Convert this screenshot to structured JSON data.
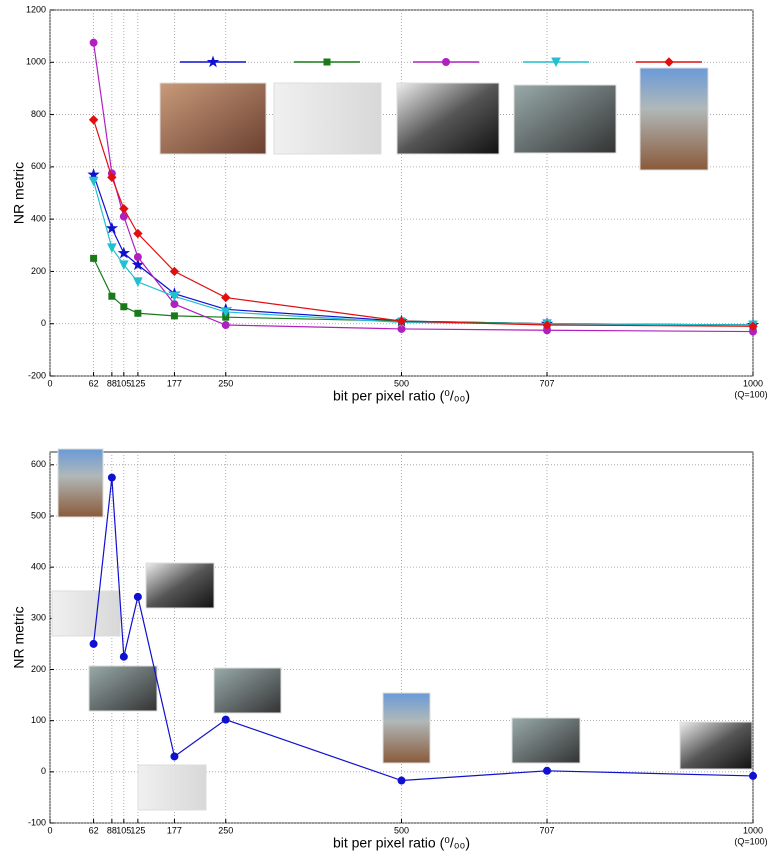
{
  "chart_data": [
    {
      "type": "line",
      "xlabel": "bit per pixel ratio (⁰/₀₀)",
      "ylabel": "NR metric",
      "annotation": "(Q=100)",
      "x": [
        62,
        88,
        105,
        125,
        177,
        250,
        500,
        707,
        1000
      ],
      "xlim": [
        0,
        1000
      ],
      "xticks": [
        0,
        62,
        88,
        105,
        125,
        177,
        250,
        500,
        707,
        1000
      ],
      "ylim": [
        -200,
        1200
      ],
      "yticks": [
        -200,
        0,
        200,
        400,
        600,
        800,
        1000,
        1200
      ],
      "grid": true,
      "series": [
        {
          "color": "#1010d0",
          "marker": "star",
          "values": [
            570,
            365,
            270,
            225,
            115,
            55,
            10,
            0,
            -5
          ]
        },
        {
          "color": "#1a7a1a",
          "marker": "square",
          "values": [
            250,
            105,
            65,
            40,
            30,
            25,
            10,
            0,
            -5
          ]
        },
        {
          "color": "#b020c0",
          "marker": "circle",
          "values": [
            1075,
            575,
            410,
            255,
            75,
            -5,
            -20,
            -25,
            -30
          ]
        },
        {
          "color": "#20c0d0",
          "marker": "triangle",
          "values": [
            545,
            290,
            225,
            160,
            105,
            45,
            5,
            0,
            -5
          ]
        },
        {
          "color": "#e01010",
          "marker": "diamond",
          "values": [
            780,
            560,
            440,
            345,
            200,
            100,
            10,
            -5,
            -10
          ]
        }
      ]
    },
    {
      "type": "line",
      "xlabel": "bit per pixel ratio (⁰/₀₀)",
      "ylabel": "NR metric",
      "annotation": "(Q=100)",
      "x": [
        62,
        88,
        105,
        125,
        177,
        250,
        500,
        707,
        1000
      ],
      "xlim": [
        0,
        1000
      ],
      "xticks": [
        0,
        62,
        88,
        105,
        125,
        177,
        250,
        500,
        707,
        1000
      ],
      "ylim": [
        -100,
        625
      ],
      "yticks": [
        -100,
        0,
        100,
        200,
        300,
        400,
        500,
        600
      ],
      "grid": true,
      "series": [
        {
          "color": "#1010d0",
          "marker": "circle",
          "values": [
            250,
            575,
            225,
            342,
            30,
            102,
            -17,
            2,
            -8
          ]
        }
      ]
    }
  ]
}
